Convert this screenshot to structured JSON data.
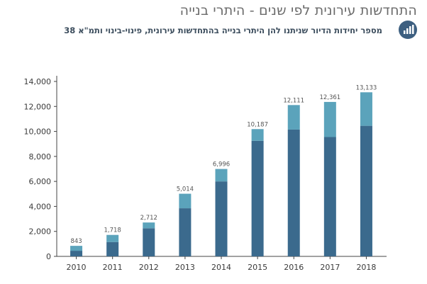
{
  "header": {
    "title": "התחדשות עירונית לפי שנים - היתרי בנייה",
    "subtitle": "מספר יחידות הדיור שניתנו להן היתרי בנייה בהתחדשות עירונית, פינוי-בינוי ותמ\"א 38"
  },
  "icon": {
    "name": "bar-chart-icon"
  },
  "colors": {
    "bar_dark": "#3b6a8d",
    "bar_light": "#5ba3bb",
    "axis": "#444444",
    "icon_bg": "#3d5f80"
  },
  "chart_data": {
    "type": "bar",
    "stacked": true,
    "categories": [
      "2010",
      "2011",
      "2012",
      "2013",
      "2014",
      "2015",
      "2016",
      "2017",
      "2018"
    ],
    "series": [
      {
        "values": [
          450,
          1150,
          2250,
          3850,
          6000,
          9250,
          10150,
          9550,
          10450
        ]
      },
      {
        "values": [
          393,
          568,
          462,
          1164,
          996,
          937,
          1961,
          2811,
          2683
        ]
      }
    ],
    "totals": [
      843,
      1718,
      2712,
      5014,
      6996,
      10187,
      12111,
      12361,
      13133
    ],
    "data_labels": [
      "843",
      "1,718",
      "2,712",
      "5,014",
      "6,996",
      "10,187",
      "12,111",
      "12,361",
      "13,133"
    ],
    "y_ticks": [
      0,
      2000,
      4000,
      6000,
      8000,
      10000,
      12000,
      14000
    ],
    "y_tick_labels": [
      "0",
      "2,000",
      "4,000",
      "6,000",
      "8,000",
      "10,000",
      "12,000",
      "14,000"
    ],
    "ylim": [
      0,
      14000
    ],
    "grid": false,
    "legend": "none"
  }
}
